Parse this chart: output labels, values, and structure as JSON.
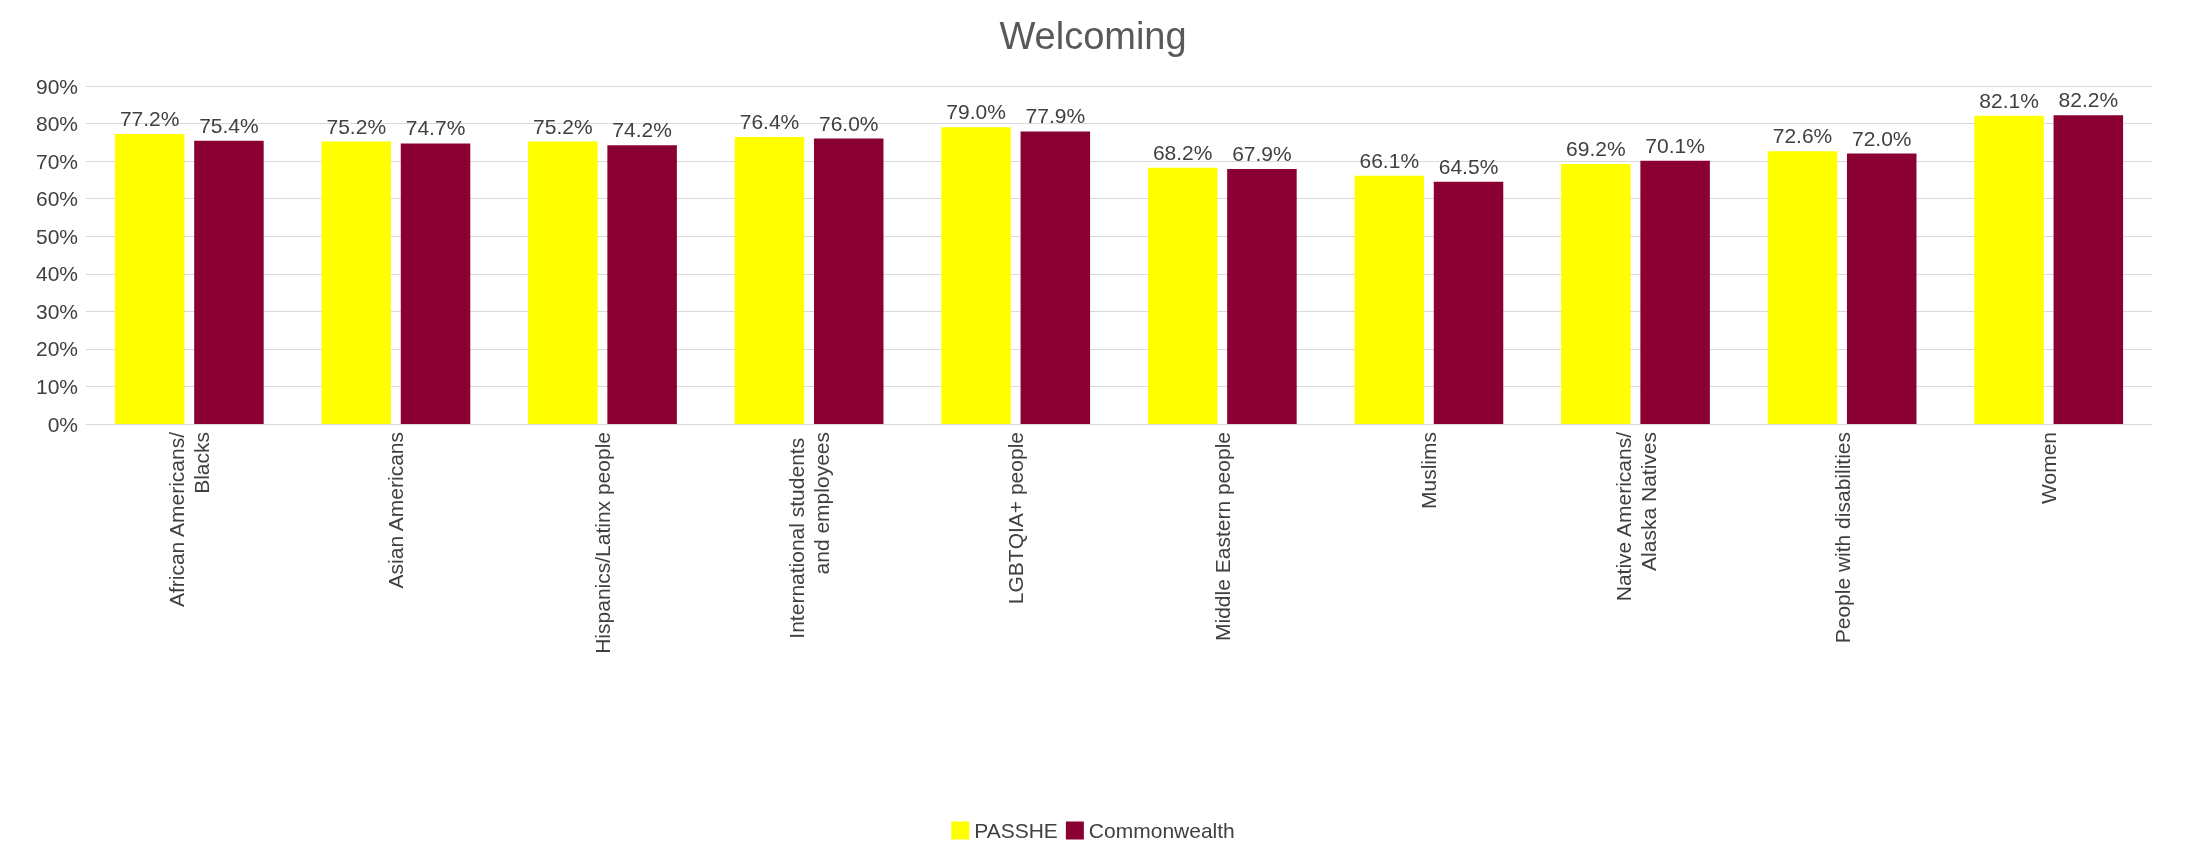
{
  "chart_data": {
    "type": "bar",
    "title": "Welcoming",
    "categories": [
      "African Americans/Blacks",
      "Asian Americans",
      "Hispanics/Latinx people",
      "International students and employees",
      "LGBTQIA+ people",
      "Middle Eastern people",
      "Muslims",
      "Native Americans/Alaska Natives",
      "People with disabilities",
      "Women"
    ],
    "series": [
      {
        "name": "PASSHE",
        "color": "#ffff00",
        "values": [
          77.2,
          75.2,
          75.2,
          76.4,
          79.0,
          68.2,
          66.1,
          69.2,
          72.6,
          82.1
        ],
        "value_labels": [
          "77.2%",
          "75.2%",
          "75.2%",
          "76.4%",
          "79.0%",
          "68.2%",
          "66.1%",
          "69.2%",
          "72.6%",
          "82.1%"
        ]
      },
      {
        "name": "Commonwealth",
        "color": "#8b0033",
        "values": [
          75.4,
          74.7,
          74.2,
          76.0,
          77.9,
          67.9,
          64.5,
          70.1,
          72.0,
          82.2
        ],
        "value_labels": [
          "75.4%",
          "74.7%",
          "74.2%",
          "76.0%",
          "77.9%",
          "67.9%",
          "64.5%",
          "70.1%",
          "72.0%",
          "82.2%"
        ]
      }
    ],
    "ylim": [
      0,
      90
    ],
    "yticks": [
      {
        "value": 0,
        "label": "0%"
      },
      {
        "value": 10,
        "label": "10%"
      },
      {
        "value": 20,
        "label": "20%"
      },
      {
        "value": 30,
        "label": "30%"
      },
      {
        "value": 40,
        "label": "40%"
      },
      {
        "value": 50,
        "label": "50%"
      },
      {
        "value": 60,
        "label": "60%"
      },
      {
        "value": 70,
        "label": "70%"
      },
      {
        "value": 80,
        "label": "80%"
      },
      {
        "value": 90,
        "label": "90%"
      }
    ],
    "grid": "y",
    "legend": "bottom"
  }
}
